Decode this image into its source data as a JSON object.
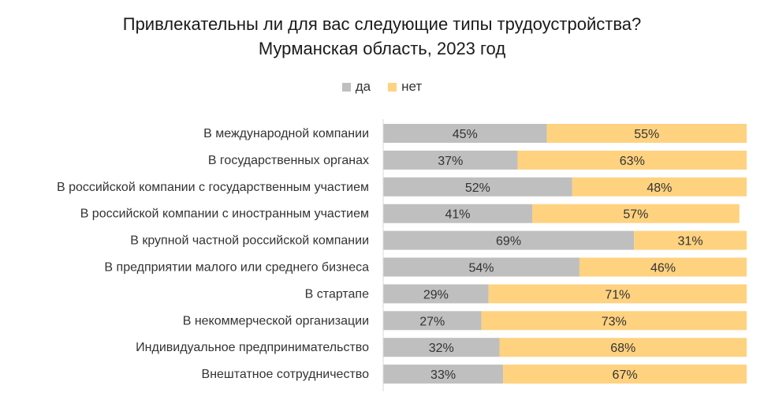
{
  "chart_data": {
    "type": "bar",
    "orientation": "horizontal",
    "stacked": true,
    "title": "Привлекательны ли для вас следующие типы трудоустройства?",
    "subtitle": "Мурманская область, 2023 год",
    "legend_position": "top",
    "grid": false,
    "xlim": [
      0,
      100
    ],
    "categories": [
      "В международной компании",
      "В государственных органах",
      "В российской компании с государственным участием",
      "В российской компании с иностранным участием",
      "В крупной частной российской компании",
      "В предприятии малого или среднего бизнеса",
      "В стартапе",
      "В некоммерческой организации",
      "Индивидуальное предпринимательство",
      "Внештатное сотрудничество"
    ],
    "series": [
      {
        "name": "да",
        "color": "#bfbfbf",
        "values": [
          45,
          37,
          52,
          41,
          69,
          54,
          29,
          27,
          32,
          33
        ]
      },
      {
        "name": "нет",
        "color": "#ffd280",
        "values": [
          55,
          63,
          48,
          57,
          31,
          46,
          71,
          73,
          68,
          67
        ]
      }
    ],
    "value_suffix": "%"
  }
}
